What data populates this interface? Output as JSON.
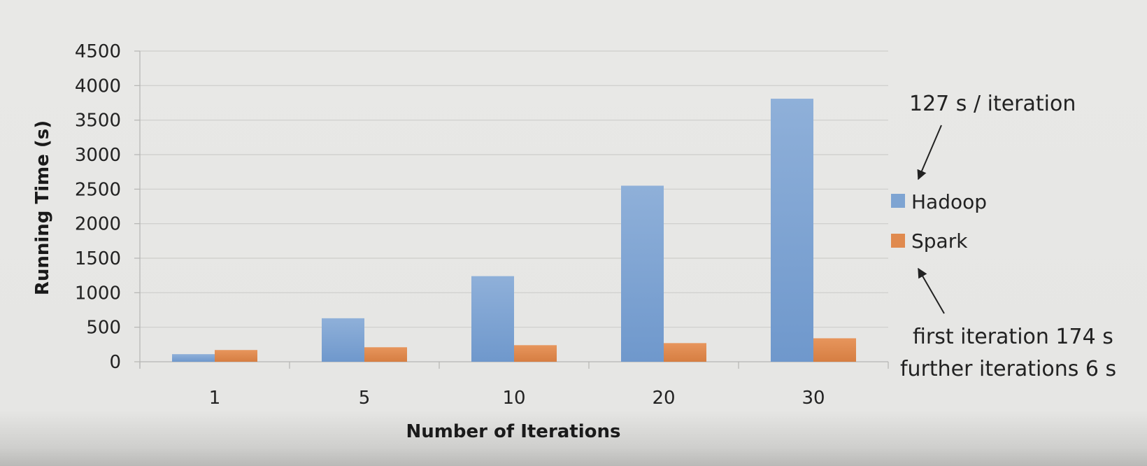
{
  "chart_data": {
    "type": "bar",
    "title": "",
    "xlabel": "Number of Iterations",
    "ylabel": "Running Time (s)",
    "categories": [
      "1",
      "5",
      "10",
      "20",
      "30"
    ],
    "series": [
      {
        "name": "Hadoop",
        "color": "#7ea4d2",
        "values": [
          110,
          630,
          1240,
          2550,
          3810
        ]
      },
      {
        "name": "Spark",
        "color": "#e08a4e",
        "values": [
          170,
          210,
          240,
          270,
          340
        ]
      }
    ],
    "ylim": [
      0,
      4500
    ],
    "yticks": [
      0,
      500,
      1000,
      1500,
      2000,
      2500,
      3000,
      3500,
      4000,
      4500
    ],
    "grid": true,
    "legend_placement": "right",
    "annotations": {
      "hadoop": "127 s / iteration",
      "spark_line1": "first iteration 174 s",
      "spark_line2": "further iterations 6 s"
    }
  }
}
